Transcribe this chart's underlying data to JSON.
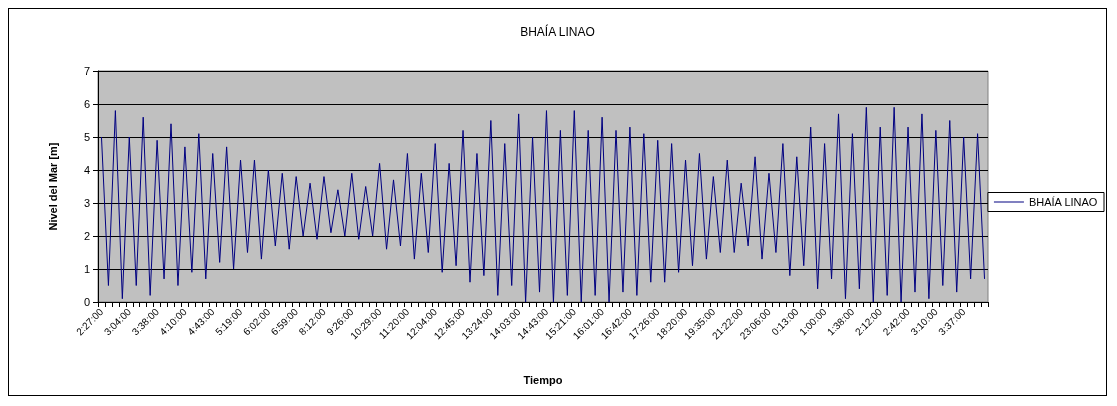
{
  "chart_data": {
    "type": "line",
    "title": "BHAÍA LINAO",
    "xlabel": "Tiempo",
    "ylabel": "Nivel del Mar [m]",
    "categories": [
      "2:27:00",
      null,
      null,
      null,
      "3:04:00",
      null,
      null,
      null,
      "3:38:00",
      null,
      null,
      null,
      "4:10:00",
      null,
      null,
      null,
      "4:43:00",
      null,
      null,
      null,
      "5:19:00",
      null,
      null,
      null,
      "6:02:00",
      null,
      null,
      null,
      "6:59:00",
      null,
      null,
      null,
      "8:12:00",
      null,
      null,
      null,
      "9:26:00",
      null,
      null,
      null,
      "10:29:00",
      null,
      null,
      null,
      "11:20:00",
      null,
      null,
      null,
      "12:04:00",
      null,
      null,
      null,
      "12:45:00",
      null,
      null,
      null,
      "13:24:00",
      null,
      null,
      null,
      "14:03:00",
      null,
      null,
      null,
      "14:43:00",
      null,
      null,
      null,
      "15:21:00",
      null,
      null,
      null,
      "16:01:00",
      null,
      null,
      null,
      "16:42:00",
      null,
      null,
      null,
      "17:26:00",
      null,
      null,
      null,
      "18:20:00",
      null,
      null,
      null,
      "19:35:00",
      null,
      null,
      null,
      "21:22:00",
      null,
      null,
      null,
      "23:06:00",
      null,
      null,
      null,
      "0:13:00",
      null,
      null,
      null,
      "1:00:00",
      null,
      null,
      null,
      "1:38:00",
      null,
      null,
      null,
      "2:12:00",
      null,
      null,
      null,
      "2:42:00",
      null,
      null,
      null,
      "3:10:00",
      null,
      null,
      null,
      "3:37:00",
      null,
      null,
      null
    ],
    "series": [
      {
        "name": "BHAÍA LINAO",
        "color": "#000080",
        "values": [
          5.0,
          0.5,
          5.8,
          0.1,
          5.0,
          0.5,
          5.6,
          0.2,
          4.9,
          0.7,
          5.4,
          0.5,
          4.7,
          0.9,
          5.1,
          0.7,
          4.5,
          1.2,
          4.7,
          1.0,
          4.3,
          1.5,
          4.3,
          1.3,
          4.0,
          1.7,
          3.9,
          1.6,
          3.8,
          2.0,
          3.6,
          1.9,
          3.8,
          2.1,
          3.4,
          2.0,
          3.9,
          1.9,
          3.5,
          2.0,
          4.2,
          1.6,
          3.7,
          1.7,
          4.5,
          1.3,
          3.9,
          1.5,
          4.8,
          0.9,
          4.2,
          1.1,
          5.2,
          0.6,
          4.5,
          0.8,
          5.5,
          0.2,
          4.8,
          0.5,
          5.7,
          0.0,
          5.0,
          0.3,
          5.8,
          0.0,
          5.2,
          0.2,
          5.8,
          0.0,
          5.2,
          0.2,
          5.6,
          0.0,
          5.2,
          0.3,
          5.3,
          0.2,
          5.1,
          0.6,
          4.9,
          0.6,
          4.8,
          0.9,
          4.3,
          1.1,
          4.5,
          1.3,
          3.8,
          1.5,
          4.3,
          1.5,
          3.6,
          1.7,
          4.4,
          1.3,
          3.9,
          1.5,
          4.8,
          0.8,
          4.4,
          1.1,
          5.3,
          0.4,
          4.8,
          0.7,
          5.7,
          0.1,
          5.1,
          0.4,
          5.9,
          0.0,
          5.3,
          0.2,
          5.9,
          0.0,
          5.3,
          0.3,
          5.7,
          0.1,
          5.2,
          0.5,
          5.5,
          0.3,
          5.0,
          0.7,
          5.1,
          0.7
        ]
      }
    ],
    "ylim": [
      0,
      7
    ],
    "yticks": [
      0,
      1,
      2,
      3,
      4,
      5,
      6,
      7
    ],
    "grid": "y",
    "legend": "right",
    "marker": "none",
    "line_style": "solid"
  }
}
